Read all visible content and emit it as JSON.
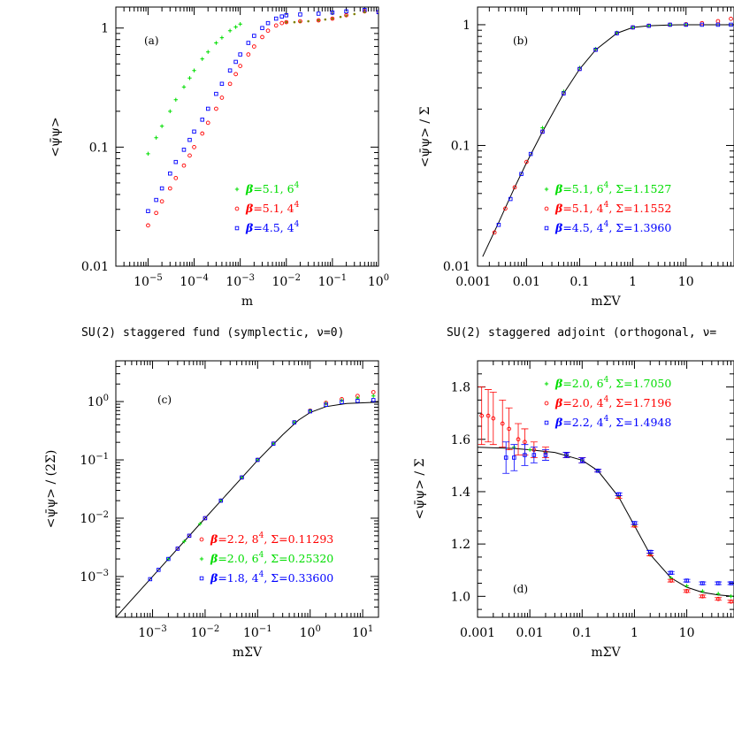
{
  "section_titles": {
    "left": "SU(2) staggered fund (symplectic, ν=0)",
    "right": "SU(2) staggered adjoint (orthogonal, ν="
  },
  "colors": {
    "green": "#00dd00",
    "red": "#ff0000",
    "blue": "#0000ff",
    "olive": "#808000",
    "black": "#000000"
  },
  "chart_data": [
    {
      "id": "a",
      "type": "scatter",
      "panel_label": "(a)",
      "xlabel": "m",
      "ylabel": "<ψ̄ψ>",
      "xscale": "log",
      "yscale": "log",
      "xlim": [
        2e-06,
        1
      ],
      "ylim": [
        0.01,
        1.5
      ],
      "xticks": [
        {
          "v": 1e-05,
          "base": "10",
          "exp": "−5"
        },
        {
          "v": 0.0001,
          "base": "10",
          "exp": "−4"
        },
        {
          "v": 0.001,
          "base": "10",
          "exp": "−3"
        },
        {
          "v": 0.01,
          "base": "10",
          "exp": "−2"
        },
        {
          "v": 0.1,
          "base": "10",
          "exp": "−1"
        },
        {
          "v": 1,
          "base": "10",
          "exp": "0"
        }
      ],
      "yticks": [
        {
          "v": 0.01,
          "text": "0.01"
        },
        {
          "v": 0.1,
          "text": "0.1"
        },
        {
          "v": 1,
          "text": "1"
        }
      ],
      "legend": [
        {
          "symbol": "plus",
          "color": "#00dd00",
          "beta": "=5.1,",
          "lattice": " 6",
          "lexp": "4",
          "extra": ""
        },
        {
          "symbol": "circle",
          "color": "#ff0000",
          "beta": "=5.1,",
          "lattice": " 4",
          "lexp": "4",
          "extra": ""
        },
        {
          "symbol": "square",
          "color": "#0000ff",
          "beta": "=4.5,",
          "lattice": " 4",
          "lexp": "4",
          "extra": ""
        }
      ],
      "legend_position": "lower-right",
      "series": [
        {
          "name": "β=5.1, 6⁴",
          "symbol": "plus",
          "color": "#00dd00",
          "x": [
            1e-05,
            1.5e-05,
            2e-05,
            3e-05,
            4e-05,
            6e-05,
            8e-05,
            0.0001,
            0.00015,
            0.0002,
            0.0003,
            0.0004,
            0.0006,
            0.0008,
            0.001
          ],
          "y": [
            0.088,
            0.12,
            0.15,
            0.2,
            0.25,
            0.32,
            0.38,
            0.44,
            0.55,
            0.63,
            0.75,
            0.83,
            0.95,
            1.02,
            1.08
          ]
        },
        {
          "name": "β=5.1, 4⁴",
          "symbol": "circle",
          "color": "#ff0000",
          "x": [
            1e-05,
            1.5e-05,
            2e-05,
            3e-05,
            4e-05,
            6e-05,
            8e-05,
            0.0001,
            0.00015,
            0.0002,
            0.0003,
            0.0004,
            0.0006,
            0.0008,
            0.001,
            0.0015,
            0.002,
            0.003,
            0.004,
            0.006,
            0.008,
            0.01,
            0.02,
            0.05,
            0.1,
            0.2,
            0.5,
            1
          ],
          "y": [
            0.022,
            0.028,
            0.035,
            0.045,
            0.055,
            0.07,
            0.085,
            0.1,
            0.13,
            0.16,
            0.21,
            0.26,
            0.34,
            0.41,
            0.48,
            0.6,
            0.7,
            0.84,
            0.95,
            1.05,
            1.1,
            1.12,
            1.14,
            1.16,
            1.2,
            1.28,
            1.38,
            1.36
          ]
        },
        {
          "name": "β=4.5, 4⁴",
          "symbol": "square",
          "color": "#0000ff",
          "x": [
            1e-05,
            1.5e-05,
            2e-05,
            3e-05,
            4e-05,
            6e-05,
            8e-05,
            0.0001,
            0.00015,
            0.0002,
            0.0003,
            0.0004,
            0.0006,
            0.0008,
            0.001,
            0.0015,
            0.002,
            0.003,
            0.004,
            0.006,
            0.008,
            0.01,
            0.02,
            0.05,
            0.1,
            0.2,
            0.5,
            1
          ],
          "y": [
            0.029,
            0.036,
            0.045,
            0.06,
            0.075,
            0.095,
            0.115,
            0.135,
            0.17,
            0.21,
            0.28,
            0.34,
            0.44,
            0.52,
            0.6,
            0.75,
            0.86,
            1.0,
            1.1,
            1.2,
            1.25,
            1.28,
            1.3,
            1.32,
            1.35,
            1.38,
            1.42,
            1.36
          ]
        },
        {
          "name": "",
          "symbol": "dot",
          "color": "#808000",
          "x": [
            0.01,
            0.015,
            0.02,
            0.03,
            0.05,
            0.07,
            0.1,
            0.15,
            0.2,
            0.3,
            0.5
          ],
          "y": [
            1.12,
            1.12,
            1.13,
            1.14,
            1.16,
            1.18,
            1.2,
            1.24,
            1.27,
            1.31,
            1.36
          ]
        }
      ]
    },
    {
      "id": "b",
      "type": "scatter",
      "panel_label": "(b)",
      "xlabel": "mΣV",
      "ylabel": "<ψ̄ψ> / Σ",
      "xscale": "log",
      "yscale": "log",
      "xlim": [
        0.0012,
        80
      ],
      "ylim": [
        0.01,
        1.4
      ],
      "xticks": [
        {
          "v": 0.001,
          "text": "0.001"
        },
        {
          "v": 0.01,
          "text": "0.01"
        },
        {
          "v": 0.1,
          "text": "0.1"
        },
        {
          "v": 1,
          "text": "1"
        },
        {
          "v": 10,
          "text": "10"
        }
      ],
      "yticks": [
        {
          "v": 0.01,
          "text": "0.01"
        },
        {
          "v": 0.1,
          "text": "0.1"
        },
        {
          "v": 1,
          "text": "1"
        }
      ],
      "legend": [
        {
          "symbol": "plus",
          "color": "#00dd00",
          "beta": "=5.1,",
          "lattice": " 6",
          "lexp": "4",
          "extra": ", Σ=1.1527"
        },
        {
          "symbol": "circle",
          "color": "#ff0000",
          "beta": "=5.1,",
          "lattice": " 4",
          "lexp": "4",
          "extra": ", Σ=1.1552"
        },
        {
          "symbol": "square",
          "color": "#0000ff",
          "beta": "=4.5,",
          "lattice": " 4",
          "lexp": "4",
          "extra": ", Σ=1.3960"
        }
      ],
      "legend_position": "lower-right",
      "curve": {
        "x": [
          0.0015,
          0.003,
          0.006,
          0.01,
          0.02,
          0.05,
          0.1,
          0.2,
          0.5,
          1,
          2,
          5,
          10,
          20,
          50,
          80
        ],
        "y": [
          0.012,
          0.023,
          0.045,
          0.072,
          0.13,
          0.27,
          0.43,
          0.62,
          0.85,
          0.95,
          0.98,
          0.995,
          1.0,
          1.0,
          1.0,
          1.0
        ]
      },
      "series": [
        {
          "name": "β=5.1, 6⁴",
          "symbol": "plus",
          "color": "#00dd00",
          "x": [
            0.02,
            0.05,
            0.1,
            0.2,
            0.5,
            1,
            2,
            5,
            10
          ],
          "y": [
            0.14,
            0.28,
            0.44,
            0.63,
            0.86,
            0.95,
            0.98,
            1.0,
            1.0
          ]
        },
        {
          "name": "β=5.1, 4⁴",
          "symbol": "circle",
          "color": "#ff0000",
          "x": [
            0.0025,
            0.004,
            0.006,
            0.01,
            0.02,
            0.05,
            0.1,
            0.2,
            0.5,
            1,
            2,
            5,
            10,
            20,
            40,
            70
          ],
          "y": [
            0.019,
            0.03,
            0.045,
            0.073,
            0.13,
            0.27,
            0.43,
            0.62,
            0.85,
            0.95,
            0.98,
            1.0,
            1.01,
            1.03,
            1.07,
            1.12
          ]
        },
        {
          "name": "β=4.5, 4⁴",
          "symbol": "square",
          "color": "#0000ff",
          "x": [
            0.003,
            0.005,
            0.008,
            0.012,
            0.02,
            0.05,
            0.1,
            0.2,
            0.5,
            1,
            2,
            5,
            10,
            20,
            40,
            70
          ],
          "y": [
            0.022,
            0.036,
            0.058,
            0.085,
            0.13,
            0.27,
            0.43,
            0.62,
            0.85,
            0.95,
            0.98,
            1.0,
            1.0,
            1.0,
            1.0,
            1.0
          ]
        }
      ]
    },
    {
      "id": "c",
      "type": "scatter",
      "panel_label": "(c)",
      "xlabel": "mΣV",
      "ylabel": "<ψ̄ψ> / (2Σ)",
      "xscale": "log",
      "yscale": "log",
      "xlim": [
        0.0002,
        20
      ],
      "ylim": [
        0.0002,
        5
      ],
      "xticks": [
        {
          "v": 0.001,
          "base": "10",
          "exp": "−3"
        },
        {
          "v": 0.01,
          "base": "10",
          "exp": "−2"
        },
        {
          "v": 0.1,
          "base": "10",
          "exp": "−1"
        },
        {
          "v": 1,
          "base": "10",
          "exp": "0"
        },
        {
          "v": 10,
          "base": "10",
          "exp": "1"
        }
      ],
      "yticks": [
        {
          "v": 0.001,
          "base": "10",
          "exp": "−3"
        },
        {
          "v": 0.01,
          "base": "10",
          "exp": "−2"
        },
        {
          "v": 0.1,
          "base": "10",
          "exp": "−1"
        },
        {
          "v": 1,
          "base": "10",
          "exp": "0"
        }
      ],
      "legend": [
        {
          "symbol": "circle",
          "color": "#ff0000",
          "beta": "=2.2,",
          "lattice": " 8",
          "lexp": "4",
          "extra": ", Σ=0.11293"
        },
        {
          "symbol": "plus",
          "color": "#00dd00",
          "beta": "=2.0,",
          "lattice": " 6",
          "lexp": "4",
          "extra": ", Σ=0.25320"
        },
        {
          "symbol": "square",
          "color": "#0000ff",
          "beta": "=1.8,",
          "lattice": " 4",
          "lexp": "4",
          "extra": ", Σ=0.33600"
        }
      ],
      "legend_position": "lower-right",
      "curve": {
        "x": [
          0.0002,
          0.001,
          0.01,
          0.1,
          0.3,
          0.6,
          1,
          2,
          5,
          20
        ],
        "y": [
          0.0002,
          0.001,
          0.01,
          0.098,
          0.27,
          0.48,
          0.65,
          0.82,
          0.93,
          0.98
        ]
      },
      "series": [
        {
          "name": "β=2.2, 8⁴",
          "symbol": "circle",
          "color": "#ff0000",
          "x": [
            0.003,
            0.005,
            0.01,
            0.02,
            0.05,
            0.1,
            0.2,
            0.5,
            1,
            2,
            4,
            8,
            16
          ],
          "y": [
            0.003,
            0.005,
            0.01,
            0.02,
            0.05,
            0.1,
            0.19,
            0.44,
            0.7,
            0.95,
            1.1,
            1.25,
            1.45
          ]
        },
        {
          "name": "β=2.0, 6⁴",
          "symbol": "plus",
          "color": "#00dd00",
          "x": [
            0.002,
            0.004,
            0.008,
            0.02,
            0.05,
            0.1,
            0.2,
            0.5,
            1,
            2,
            4,
            8,
            16
          ],
          "y": [
            0.002,
            0.004,
            0.008,
            0.02,
            0.05,
            0.1,
            0.19,
            0.44,
            0.7,
            0.93,
            1.05,
            1.15,
            1.25
          ]
        },
        {
          "name": "β=1.8, 4⁴",
          "symbol": "square",
          "color": "#0000ff",
          "x": [
            0.0009,
            0.0013,
            0.002,
            0.003,
            0.005,
            0.01,
            0.02,
            0.05,
            0.1,
            0.2,
            0.5,
            1,
            2,
            4,
            8,
            16
          ],
          "y": [
            0.0009,
            0.0013,
            0.002,
            0.003,
            0.005,
            0.01,
            0.02,
            0.05,
            0.1,
            0.19,
            0.44,
            0.68,
            0.88,
            0.98,
            1.03,
            1.06
          ]
        }
      ]
    },
    {
      "id": "d",
      "type": "scatter",
      "panel_label": "(d)",
      "xlabel": "mΣV",
      "ylabel": "<ψ̄ψ> / Σ",
      "xscale": "log",
      "yscale": "linear",
      "xlim": [
        0.001,
        80
      ],
      "ylim": [
        0.92,
        1.9
      ],
      "xticks": [
        {
          "v": 0.001,
          "text": "0.001"
        },
        {
          "v": 0.01,
          "text": "0.01"
        },
        {
          "v": 0.1,
          "text": "0.1"
        },
        {
          "v": 1,
          "text": "1"
        },
        {
          "v": 10,
          "text": "10"
        }
      ],
      "yticks": [
        {
          "v": 1.0,
          "text": "1.0"
        },
        {
          "v": 1.2,
          "text": "1.2"
        },
        {
          "v": 1.4,
          "text": "1.4"
        },
        {
          "v": 1.6,
          "text": "1.6"
        },
        {
          "v": 1.8,
          "text": "1.8"
        }
      ],
      "legend": [
        {
          "symbol": "plus",
          "color": "#00dd00",
          "beta": "=2.0,",
          "lattice": " 6",
          "lexp": "4",
          "extra": ", Σ=1.7050"
        },
        {
          "symbol": "circle",
          "color": "#ff0000",
          "beta": "=2.0,",
          "lattice": " 4",
          "lexp": "4",
          "extra": ", Σ=1.7196"
        },
        {
          "symbol": "square",
          "color": "#0000ff",
          "beta": "=2.2,",
          "lattice": " 4",
          "lexp": "4",
          "extra": ", Σ=1.4948"
        }
      ],
      "legend_position": "top-right",
      "curve": {
        "x": [
          0.001,
          0.005,
          0.01,
          0.03,
          0.1,
          0.2,
          0.5,
          1,
          2,
          5,
          10,
          20,
          40,
          80
        ],
        "y": [
          1.57,
          1.565,
          1.56,
          1.55,
          1.52,
          1.48,
          1.38,
          1.27,
          1.16,
          1.07,
          1.035,
          1.015,
          1.005,
          1.0
        ]
      },
      "series": [
        {
          "name": "β=2.0, 6⁴",
          "symbol": "plus",
          "color": "#00dd00",
          "x": [
            0.005,
            0.01,
            0.02,
            0.05,
            0.1,
            0.2,
            0.5,
            1,
            2,
            5,
            10,
            20,
            40,
            70
          ],
          "y": [
            1.57,
            1.56,
            1.55,
            1.54,
            1.52,
            1.48,
            1.38,
            1.27,
            1.16,
            1.07,
            1.04,
            1.02,
            1.01,
            1.0
          ]
        },
        {
          "name": "β=2.0, 4⁴",
          "symbol": "circle",
          "color": "#ff0000",
          "x": [
            0.0012,
            0.0016,
            0.002,
            0.003,
            0.004,
            0.006,
            0.008,
            0.012,
            0.02,
            0.05,
            0.1,
            0.2,
            0.5,
            1,
            2,
            5,
            10,
            20,
            40,
            70
          ],
          "y": [
            1.69,
            1.69,
            1.68,
            1.66,
            1.64,
            1.6,
            1.59,
            1.56,
            1.55,
            1.54,
            1.52,
            1.48,
            1.38,
            1.27,
            1.16,
            1.06,
            1.02,
            1.0,
            0.99,
            0.98
          ],
          "yerr": [
            0.11,
            0.1,
            0.1,
            0.09,
            0.08,
            0.06,
            0.05,
            0.03,
            0.02,
            0.01,
            0.01,
            0.005,
            0.005,
            0.005,
            0.005,
            0.005,
            0.005,
            0.005,
            0.005,
            0.005
          ]
        },
        {
          "name": "β=2.2, 4⁴",
          "symbol": "square",
          "color": "#0000ff",
          "x": [
            0.0035,
            0.005,
            0.008,
            0.012,
            0.02,
            0.05,
            0.1,
            0.2,
            0.5,
            1,
            2,
            5,
            10,
            20,
            40,
            70
          ],
          "y": [
            1.53,
            1.53,
            1.54,
            1.54,
            1.54,
            1.54,
            1.52,
            1.48,
            1.39,
            1.28,
            1.17,
            1.09,
            1.06,
            1.05,
            1.05,
            1.05
          ],
          "yerr": [
            0.06,
            0.05,
            0.04,
            0.03,
            0.02,
            0.01,
            0.01,
            0.005,
            0.005,
            0.005,
            0.005,
            0.005,
            0.005,
            0.005,
            0.005,
            0.005
          ]
        }
      ]
    }
  ]
}
